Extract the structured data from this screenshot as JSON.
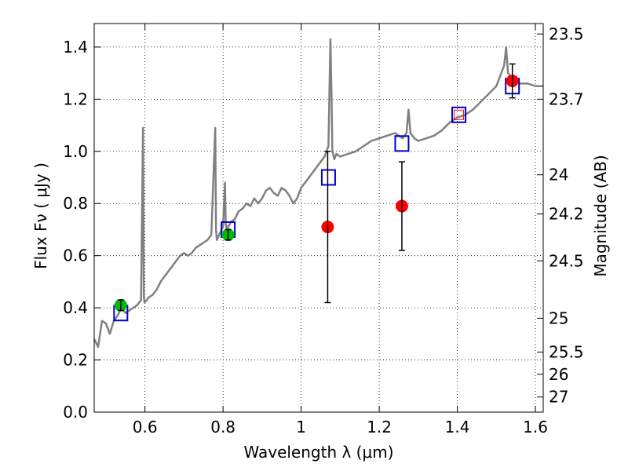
{
  "chart_data": {
    "type": "scatter",
    "xlabel": "Wavelength  λ (μm)",
    "ylabel": "Flux  Fν  ( μJy )",
    "ylabel_right": "Magnitude (AB)",
    "xlim": [
      0.47,
      1.62
    ],
    "ylim": [
      0.0,
      1.49
    ],
    "grid": true,
    "grid_style": "dotted",
    "x_ticks": [
      0.6,
      0.8,
      1.0,
      1.2,
      1.4,
      1.6
    ],
    "x_tick_labels": [
      "0.6",
      "0.8",
      "1",
      "1.2",
      "1.4",
      "1.6"
    ],
    "y_ticks": [
      0.0,
      0.2,
      0.4,
      0.6,
      0.8,
      1.0,
      1.2,
      1.4
    ],
    "y_tick_labels": [
      "0.0",
      "0.2",
      "0.4",
      "0.6",
      "0.8",
      "1.0",
      "1.2",
      "1.4"
    ],
    "right_ticks": [
      {
        "label": "23.5",
        "flux": 1.45
      },
      {
        "label": "23.7",
        "flux": 1.2
      },
      {
        "label": "24",
        "flux": 0.91
      },
      {
        "label": "24.2",
        "flux": 0.76
      },
      {
        "label": "24.5",
        "flux": 0.58
      },
      {
        "label": "25",
        "flux": 0.36
      },
      {
        "label": "25.5",
        "flux": 0.23
      },
      {
        "label": "26",
        "flux": 0.145
      },
      {
        "label": "27",
        "flux": 0.058
      }
    ],
    "series": [
      {
        "kind": "line",
        "color": "#808080",
        "x": [
          0.47,
          0.48,
          0.49,
          0.5,
          0.51,
          0.52,
          0.53,
          0.54,
          0.55,
          0.56,
          0.57,
          0.58,
          0.59,
          0.595,
          0.597,
          0.599,
          0.61,
          0.62,
          0.63,
          0.64,
          0.65,
          0.66,
          0.67,
          0.68,
          0.69,
          0.7,
          0.71,
          0.72,
          0.73,
          0.74,
          0.75,
          0.76,
          0.77,
          0.78,
          0.782,
          0.784,
          0.79,
          0.8,
          0.805,
          0.807,
          0.81,
          0.82,
          0.83,
          0.84,
          0.85,
          0.86,
          0.87,
          0.88,
          0.89,
          0.9,
          0.91,
          0.92,
          0.93,
          0.94,
          0.95,
          0.96,
          0.97,
          0.98,
          0.99,
          1.0,
          1.01,
          1.02,
          1.03,
          1.04,
          1.05,
          1.06,
          1.07,
          1.075,
          1.078,
          1.08,
          1.085,
          1.09,
          1.1,
          1.12,
          1.14,
          1.16,
          1.18,
          1.2,
          1.22,
          1.24,
          1.26,
          1.27,
          1.275,
          1.28,
          1.29,
          1.3,
          1.32,
          1.34,
          1.36,
          1.38,
          1.4,
          1.42,
          1.44,
          1.46,
          1.48,
          1.5,
          1.51,
          1.52,
          1.525,
          1.53,
          1.54,
          1.56,
          1.58,
          1.6,
          1.62
        ],
        "y": [
          0.28,
          0.25,
          0.35,
          0.34,
          0.3,
          0.35,
          0.37,
          0.4,
          0.38,
          0.39,
          0.4,
          0.41,
          0.43,
          1.09,
          0.44,
          0.42,
          0.44,
          0.45,
          0.47,
          0.5,
          0.52,
          0.54,
          0.56,
          0.58,
          0.6,
          0.61,
          0.6,
          0.61,
          0.63,
          0.64,
          0.65,
          0.66,
          0.68,
          1.09,
          0.7,
          0.66,
          0.68,
          0.71,
          0.88,
          0.72,
          0.7,
          0.73,
          0.74,
          0.77,
          0.78,
          0.8,
          0.79,
          0.82,
          0.8,
          0.82,
          0.85,
          0.86,
          0.84,
          0.83,
          0.86,
          0.85,
          0.83,
          0.8,
          0.82,
          0.86,
          0.88,
          0.9,
          0.92,
          0.94,
          0.96,
          0.98,
          1.02,
          1.43,
          1.2,
          1.0,
          0.97,
          0.99,
          0.98,
          0.99,
          1.0,
          1.02,
          1.04,
          1.05,
          1.06,
          1.07,
          1.05,
          1.07,
          1.16,
          1.07,
          1.05,
          1.04,
          1.05,
          1.06,
          1.08,
          1.11,
          1.13,
          1.14,
          1.16,
          1.19,
          1.22,
          1.25,
          1.29,
          1.33,
          1.4,
          1.3,
          1.28,
          1.26,
          1.26,
          1.25,
          1.25
        ]
      },
      {
        "kind": "open-square",
        "color": "#0000cc",
        "x": [
          0.538,
          0.813,
          1.07,
          1.258,
          1.404,
          1.541
        ],
        "y": [
          0.38,
          0.7,
          0.9,
          1.03,
          1.14,
          1.25
        ]
      },
      {
        "kind": "circle-errorbar",
        "color": "#00bb00",
        "x": [
          0.538,
          0.813
        ],
        "y": [
          0.41,
          0.68
        ],
        "yerr": [
          0.02,
          0.02
        ]
      },
      {
        "kind": "circle-errorbar",
        "color": "#ff0000",
        "x": [
          1.068,
          1.258,
          1.541
        ],
        "y": [
          0.71,
          0.79,
          1.27
        ],
        "yerr": [
          0.29,
          0.17,
          0.065
        ]
      },
      {
        "kind": "small-open-square",
        "color": "#ff0000",
        "x": [
          1.404
        ],
        "y": [
          1.14
        ]
      }
    ]
  }
}
